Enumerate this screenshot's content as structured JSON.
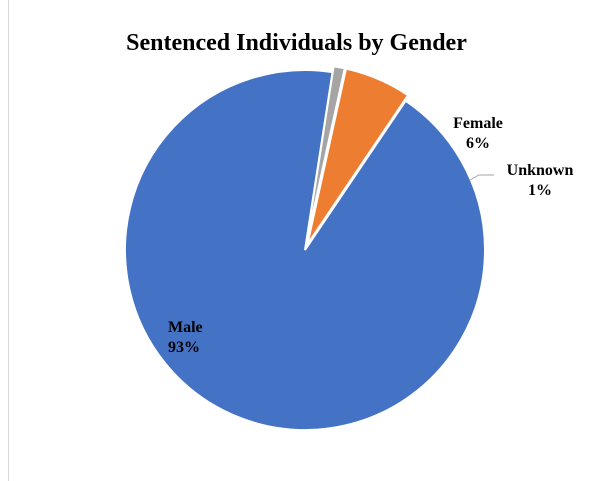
{
  "chart_data": {
    "type": "pie",
    "title": "Sentenced Individuals by Gender",
    "slices": [
      {
        "name": "Male",
        "value": 93,
        "label": "93%",
        "color": "#4472C4"
      },
      {
        "name": "Female",
        "value": 6,
        "label": "6%",
        "color": "#ED7D31"
      },
      {
        "name": "Unknown",
        "value": 1,
        "label": "1%",
        "color": "#A5A5A5"
      }
    ],
    "legend": "none"
  }
}
